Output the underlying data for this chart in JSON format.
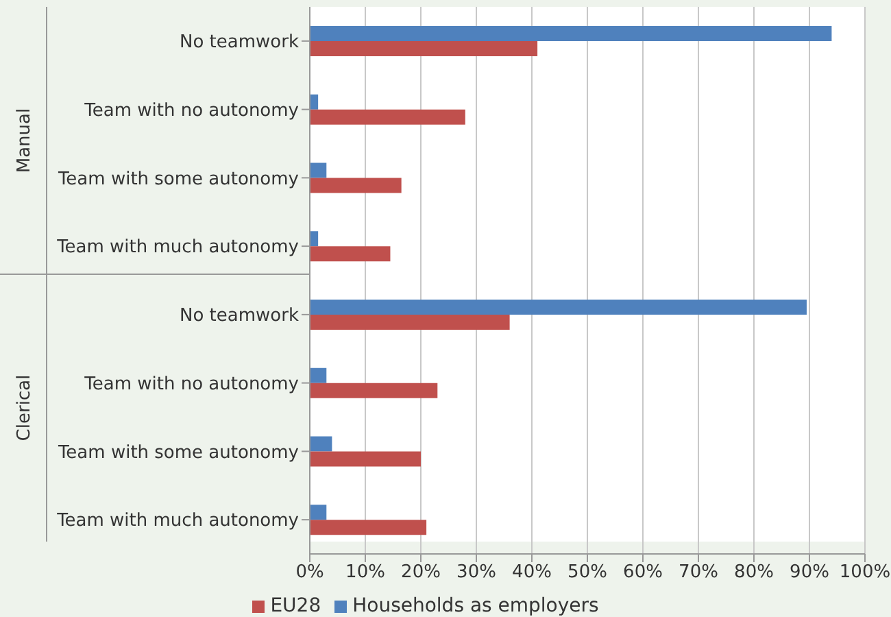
{
  "chart_data": {
    "type": "bar",
    "orientation": "horizontal",
    "categories": [
      "No teamwork",
      "Team with no autonomy",
      "Team with some autonomy",
      "Team with much autonomy",
      "No teamwork",
      "Team with no autonomy",
      "Team with some autonomy",
      "Team with much autonomy"
    ],
    "series": [
      {
        "name": "Households as employers",
        "color": "#4f81bd",
        "values": [
          94,
          1.5,
          3,
          1.5,
          89.5,
          3,
          4,
          3
        ]
      },
      {
        "name": "EU28",
        "color": "#c0504d",
        "values": [
          41,
          28,
          16.5,
          14.5,
          36,
          23,
          20,
          21
        ]
      }
    ],
    "xlim": [
      0,
      100
    ],
    "xticks": [
      {
        "value": 0,
        "label": "0%"
      },
      {
        "value": 10,
        "label": "10%"
      },
      {
        "value": 20,
        "label": "20%"
      },
      {
        "value": 30,
        "label": "30%"
      },
      {
        "value": 40,
        "label": "40%"
      },
      {
        "value": 50,
        "label": "50%"
      },
      {
        "value": 60,
        "label": "60%"
      },
      {
        "value": 70,
        "label": "70%"
      },
      {
        "value": 80,
        "label": "80%"
      },
      {
        "value": 90,
        "label": "90%"
      },
      {
        "value": 100,
        "label": "100%"
      }
    ],
    "annotations": [
      "Manual",
      "Clerical"
    ],
    "grid": "x",
    "legend": "bottom"
  }
}
